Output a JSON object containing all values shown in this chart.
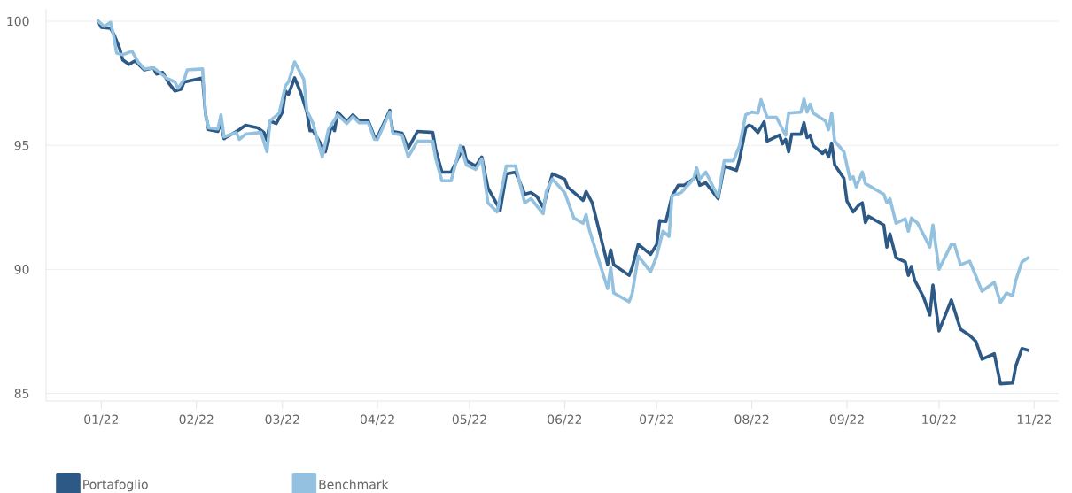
{
  "chart_data": {
    "type": "line",
    "xlim": [
      "2021-12-14",
      "2022-11-09"
    ],
    "ylim": [
      84.7,
      100.5
    ],
    "xticks": [
      {
        "value": "2022-01-01",
        "label": "01/22"
      },
      {
        "value": "2022-02-01",
        "label": "02/22"
      },
      {
        "value": "2022-03-01",
        "label": "03/22"
      },
      {
        "value": "2022-04-01",
        "label": "04/22"
      },
      {
        "value": "2022-05-01",
        "label": "05/22"
      },
      {
        "value": "2022-06-01",
        "label": "06/22"
      },
      {
        "value": "2022-07-01",
        "label": "07/22"
      },
      {
        "value": "2022-08-01",
        "label": "08/22"
      },
      {
        "value": "2022-09-01",
        "label": "09/22"
      },
      {
        "value": "2022-10-01",
        "label": "10/22"
      },
      {
        "value": "2022-11-01",
        "label": "11/22"
      }
    ],
    "yticks": [
      85,
      90,
      95,
      100
    ],
    "grid": "y",
    "legend": "bottom left",
    "marker": "none",
    "line_style": "solid",
    "series": [
      {
        "name": "Portafoglio",
        "color": "#2c5985",
        "x": [
          "2021-12-31",
          "2022-01-01",
          "2022-01-04",
          "2022-01-05",
          "2022-01-07",
          "2022-01-08",
          "2022-01-10",
          "2022-01-12",
          "2022-01-15",
          "2022-01-18",
          "2022-01-19",
          "2022-01-21",
          "2022-01-23",
          "2022-01-25",
          "2022-01-27",
          "2022-01-28",
          "2022-02-03",
          "2022-02-04",
          "2022-02-05",
          "2022-02-08",
          "2022-02-09",
          "2022-02-10",
          "2022-02-15",
          "2022-02-17",
          "2022-02-21",
          "2022-02-23",
          "2022-02-24",
          "2022-02-25",
          "2022-02-27",
          "2022-03-01",
          "2022-03-02",
          "2022-03-03",
          "2022-03-05",
          "2022-03-07",
          "2022-03-09",
          "2022-03-10",
          "2022-03-11",
          "2022-03-15",
          "2022-03-17",
          "2022-03-18",
          "2022-03-19",
          "2022-03-22",
          "2022-03-24",
          "2022-03-26",
          "2022-03-29",
          "2022-03-31",
          "2022-04-01",
          "2022-04-05",
          "2022-04-06",
          "2022-04-09",
          "2022-04-11",
          "2022-04-14",
          "2022-04-19",
          "2022-04-20",
          "2022-04-22",
          "2022-04-25",
          "2022-04-29",
          "2022-04-30",
          "2022-05-03",
          "2022-05-05",
          "2022-05-07",
          "2022-05-11",
          "2022-05-13",
          "2022-05-16",
          "2022-05-19",
          "2022-05-21",
          "2022-05-23",
          "2022-05-25",
          "2022-05-26",
          "2022-05-28",
          "2022-06-01",
          "2022-06-02",
          "2022-06-07",
          "2022-06-08",
          "2022-06-10",
          "2022-06-15",
          "2022-06-16",
          "2022-06-17",
          "2022-06-22",
          "2022-06-23",
          "2022-06-25",
          "2022-06-29",
          "2022-07-01",
          "2022-07-02",
          "2022-07-04",
          "2022-07-06",
          "2022-07-08",
          "2022-07-10",
          "2022-07-13",
          "2022-07-14",
          "2022-07-15",
          "2022-07-17",
          "2022-07-21",
          "2022-07-23",
          "2022-07-27",
          "2022-07-28",
          "2022-07-30",
          "2022-07-31",
          "2022-08-01",
          "2022-08-03",
          "2022-08-05",
          "2022-08-06",
          "2022-08-10",
          "2022-08-11",
          "2022-08-12",
          "2022-08-13",
          "2022-08-14",
          "2022-08-17",
          "2022-08-18",
          "2022-08-19",
          "2022-08-20",
          "2022-08-21",
          "2022-08-24",
          "2022-08-25",
          "2022-08-26",
          "2022-08-27",
          "2022-08-28",
          "2022-08-31",
          "2022-09-01",
          "2022-09-03",
          "2022-09-05",
          "2022-09-06",
          "2022-09-07",
          "2022-09-08",
          "2022-09-13",
          "2022-09-14",
          "2022-09-15",
          "2022-09-17",
          "2022-09-20",
          "2022-09-21",
          "2022-09-22",
          "2022-09-23",
          "2022-09-26",
          "2022-09-28",
          "2022-09-29",
          "2022-10-01",
          "2022-10-05",
          "2022-10-08",
          "2022-10-11",
          "2022-10-13",
          "2022-10-15",
          "2022-10-19",
          "2022-10-21",
          "2022-10-25",
          "2022-10-26",
          "2022-10-28",
          "2022-10-30"
        ],
        "values": [
          100.0,
          99.75,
          99.72,
          99.5,
          98.9,
          98.44,
          98.26,
          98.4,
          98.04,
          98.12,
          97.87,
          97.94,
          97.51,
          97.19,
          97.26,
          97.55,
          97.72,
          96.23,
          95.63,
          95.56,
          95.95,
          95.27,
          95.63,
          95.81,
          95.7,
          95.52,
          95.2,
          95.98,
          95.88,
          96.34,
          97.19,
          97.05,
          97.72,
          97.12,
          96.34,
          95.59,
          95.59,
          94.74,
          95.81,
          95.59,
          96.34,
          95.95,
          96.23,
          95.98,
          95.98,
          95.34,
          95.34,
          96.41,
          95.56,
          95.49,
          94.88,
          95.56,
          95.52,
          94.81,
          93.92,
          93.92,
          94.92,
          94.38,
          94.17,
          94.53,
          93.28,
          92.39,
          93.85,
          93.92,
          93.03,
          93.1,
          92.93,
          92.5,
          92.96,
          93.85,
          93.64,
          93.32,
          92.78,
          93.14,
          92.68,
          90.19,
          90.79,
          90.19,
          89.76,
          90.08,
          91.01,
          90.61,
          91.01,
          91.97,
          91.93,
          92.96,
          93.39,
          93.39,
          93.64,
          93.81,
          93.39,
          93.49,
          92.85,
          94.17,
          93.99,
          94.45,
          95.7,
          95.81,
          95.77,
          95.52,
          95.95,
          95.17,
          95.41,
          95.06,
          95.24,
          94.74,
          95.45,
          95.45,
          95.91,
          95.31,
          95.41,
          94.99,
          94.67,
          94.81,
          94.53,
          95.09,
          94.21,
          93.67,
          92.75,
          92.32,
          92.61,
          92.68,
          91.89,
          92.14,
          91.79,
          90.9,
          91.43,
          90.47,
          90.3,
          89.76,
          90.12,
          89.58,
          88.87,
          88.16,
          89.37,
          87.52,
          88.77,
          87.59,
          87.34,
          87.1,
          86.38,
          86.6,
          85.39,
          85.42,
          86.1,
          86.81,
          86.74
        ]
      },
      {
        "name": "Benchmark",
        "color": "#93c1df",
        "x": [
          "2021-12-31",
          "2022-01-02",
          "2022-01-04",
          "2022-01-05",
          "2022-01-06",
          "2022-01-08",
          "2022-01-11",
          "2022-01-13",
          "2022-01-15",
          "2022-01-18",
          "2022-01-20",
          "2022-01-22",
          "2022-01-25",
          "2022-01-26",
          "2022-01-28",
          "2022-01-29",
          "2022-02-03",
          "2022-02-04",
          "2022-02-05",
          "2022-02-08",
          "2022-02-09",
          "2022-02-10",
          "2022-02-14",
          "2022-02-15",
          "2022-02-17",
          "2022-02-22",
          "2022-02-24",
          "2022-02-25",
          "2022-02-28",
          "2022-03-02",
          "2022-03-03",
          "2022-03-05",
          "2022-03-08",
          "2022-03-09",
          "2022-03-11",
          "2022-03-14",
          "2022-03-16",
          "2022-03-19",
          "2022-03-22",
          "2022-03-24",
          "2022-03-26",
          "2022-03-29",
          "2022-03-31",
          "2022-04-01",
          "2022-04-05",
          "2022-04-06",
          "2022-04-09",
          "2022-04-11",
          "2022-04-14",
          "2022-04-19",
          "2022-04-20",
          "2022-04-22",
          "2022-04-25",
          "2022-04-28",
          "2022-04-30",
          "2022-05-03",
          "2022-05-05",
          "2022-05-07",
          "2022-05-10",
          "2022-05-13",
          "2022-05-16",
          "2022-05-19",
          "2022-05-21",
          "2022-05-25",
          "2022-05-26",
          "2022-05-28",
          "2022-06-01",
          "2022-06-04",
          "2022-06-07",
          "2022-06-08",
          "2022-06-09",
          "2022-06-15",
          "2022-06-16",
          "2022-06-17",
          "2022-06-22",
          "2022-06-23",
          "2022-06-25",
          "2022-06-29",
          "2022-07-01",
          "2022-07-03",
          "2022-07-05",
          "2022-07-06",
          "2022-07-09",
          "2022-07-13",
          "2022-07-14",
          "2022-07-15",
          "2022-07-17",
          "2022-07-21",
          "2022-07-23",
          "2022-07-26",
          "2022-07-28",
          "2022-07-30",
          "2022-08-01",
          "2022-08-03",
          "2022-08-04",
          "2022-08-06",
          "2022-08-09",
          "2022-08-12",
          "2022-08-13",
          "2022-08-17",
          "2022-08-18",
          "2022-08-19",
          "2022-08-20",
          "2022-08-21",
          "2022-08-25",
          "2022-08-26",
          "2022-08-27",
          "2022-08-28",
          "2022-08-31",
          "2022-09-02",
          "2022-09-03",
          "2022-09-04",
          "2022-09-06",
          "2022-09-07",
          "2022-09-13",
          "2022-09-14",
          "2022-09-15",
          "2022-09-17",
          "2022-09-20",
          "2022-09-21",
          "2022-09-22",
          "2022-09-24",
          "2022-09-27",
          "2022-09-28",
          "2022-09-29",
          "2022-10-01",
          "2022-10-05",
          "2022-10-06",
          "2022-10-08",
          "2022-10-11",
          "2022-10-13",
          "2022-10-15",
          "2022-10-19",
          "2022-10-21",
          "2022-10-23",
          "2022-10-25",
          "2022-10-26",
          "2022-10-28",
          "2022-10-30"
        ],
        "values": [
          100.0,
          99.79,
          99.96,
          99.43,
          98.72,
          98.65,
          98.79,
          98.36,
          98.08,
          98.12,
          97.94,
          97.72,
          97.55,
          97.3,
          97.65,
          98.04,
          98.08,
          96.23,
          95.7,
          95.66,
          96.23,
          95.34,
          95.52,
          95.24,
          95.45,
          95.52,
          94.74,
          95.98,
          96.3,
          97.4,
          97.55,
          98.36,
          97.65,
          96.41,
          95.88,
          94.53,
          95.63,
          96.23,
          95.88,
          96.16,
          95.91,
          95.91,
          95.24,
          95.24,
          96.34,
          95.49,
          95.41,
          94.53,
          95.17,
          95.17,
          94.45,
          93.57,
          93.57,
          94.99,
          94.21,
          94.03,
          94.45,
          92.68,
          92.32,
          94.17,
          94.17,
          92.68,
          92.85,
          92.25,
          93.14,
          93.64,
          93.1,
          92.07,
          91.86,
          92.21,
          91.61,
          89.23,
          90.08,
          89.05,
          88.7,
          89.02,
          90.54,
          89.9,
          90.54,
          91.54,
          91.33,
          92.96,
          93.1,
          93.64,
          94.1,
          93.64,
          93.92,
          92.93,
          94.38,
          94.38,
          94.99,
          96.23,
          96.34,
          96.3,
          96.84,
          96.13,
          96.13,
          95.41,
          96.3,
          96.34,
          96.87,
          96.34,
          96.66,
          96.3,
          95.98,
          95.63,
          96.3,
          95.17,
          94.74,
          93.64,
          93.74,
          93.32,
          93.92,
          93.46,
          93.03,
          92.68,
          92.85,
          91.86,
          92.04,
          91.54,
          92.07,
          91.86,
          91.15,
          90.9,
          91.79,
          90.01,
          91.01,
          91.01,
          90.19,
          90.33,
          89.73,
          89.12,
          89.48,
          88.66,
          89.05,
          88.94,
          89.55,
          90.3,
          90.47
        ]
      }
    ]
  }
}
